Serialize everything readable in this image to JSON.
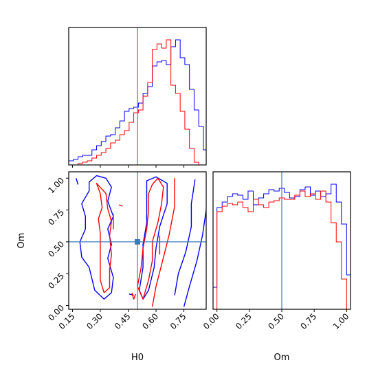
{
  "chart_data": {
    "type": "corner",
    "parameters": [
      "H0",
      "Om"
    ],
    "truth": {
      "H0": 0.5,
      "Om": 0.5,
      "color": "#3a7bbf"
    },
    "series_colors": {
      "blue": "#0000ff",
      "red": "#ff0000"
    },
    "panels": {
      "hist_H0": {
        "xlim": [
          0.13,
          0.87
        ],
        "x_ticks": [
          0.15,
          0.3,
          0.45,
          0.6,
          0.75
        ],
        "bin_edges": [
          0.13,
          0.155,
          0.18,
          0.205,
          0.23,
          0.255,
          0.28,
          0.305,
          0.33,
          0.355,
          0.38,
          0.405,
          0.43,
          0.455,
          0.48,
          0.505,
          0.53,
          0.555,
          0.58,
          0.605,
          0.63,
          0.655,
          0.68,
          0.705,
          0.73,
          0.755,
          0.78,
          0.805,
          0.83,
          0.855,
          0.87
        ],
        "blue": [
          0.03,
          0.04,
          0.06,
          0.07,
          0.07,
          0.11,
          0.14,
          0.17,
          0.21,
          0.22,
          0.27,
          0.32,
          0.39,
          0.41,
          0.42,
          0.45,
          0.52,
          0.57,
          0.72,
          0.75,
          0.76,
          0.73,
          0.86,
          0.91,
          0.78,
          0.73,
          0.55,
          0.4,
          0.28,
          0.11
        ],
        "red": [
          0.0,
          0.0,
          0.01,
          0.02,
          0.03,
          0.05,
          0.07,
          0.09,
          0.12,
          0.16,
          0.18,
          0.22,
          0.25,
          0.31,
          0.38,
          0.4,
          0.5,
          0.6,
          0.84,
          0.88,
          0.85,
          0.91,
          0.58,
          0.52,
          0.39,
          0.26,
          0.12,
          0.02,
          0.0,
          0.0
        ]
      },
      "hist_Om": {
        "xlim": [
          -0.03,
          1.03
        ],
        "x_ticks": [
          0.0,
          0.25,
          0.5,
          0.75,
          1.0
        ],
        "bin_edges": [
          -0.03,
          0.0,
          0.04,
          0.08,
          0.12,
          0.16,
          0.2,
          0.24,
          0.28,
          0.32,
          0.36,
          0.4,
          0.44,
          0.48,
          0.52,
          0.56,
          0.6,
          0.64,
          0.68,
          0.72,
          0.76,
          0.8,
          0.84,
          0.88,
          0.92,
          0.96,
          1.0,
          1.03
        ],
        "blue": [
          0.16,
          0.74,
          0.78,
          0.82,
          0.84,
          0.83,
          0.8,
          0.86,
          0.76,
          0.81,
          0.84,
          0.87,
          0.86,
          0.88,
          0.85,
          0.81,
          0.82,
          0.87,
          0.89,
          0.83,
          0.86,
          0.82,
          0.84,
          0.91,
          0.78,
          0.62,
          0.25
        ],
        "red": [
          0.0,
          0.71,
          0.75,
          0.77,
          0.76,
          0.78,
          0.74,
          0.71,
          0.8,
          0.76,
          0.74,
          0.78,
          0.79,
          0.81,
          0.8,
          0.8,
          0.83,
          0.86,
          0.82,
          0.84,
          0.8,
          0.86,
          0.78,
          0.63,
          0.49,
          0.22,
          0.0
        ]
      },
      "contour_Om_vs_H0": {
        "xlabel": "H0",
        "ylabel": "Om",
        "xlim": [
          0.13,
          0.87
        ],
        "ylim": [
          -0.03,
          1.05
        ],
        "x_ticks": [
          0.15,
          0.3,
          0.45,
          0.6,
          0.75
        ],
        "y_ticks": [
          0.0,
          0.25,
          0.5,
          0.75,
          1.0
        ],
        "blue_contours": [
          [
            [
              0.24,
              0.97
            ],
            [
              0.28,
              1.02
            ],
            [
              0.33,
              1.0
            ],
            [
              0.36,
              0.93
            ],
            [
              0.34,
              0.82
            ],
            [
              0.37,
              0.7
            ],
            [
              0.34,
              0.6
            ],
            [
              0.36,
              0.48
            ],
            [
              0.34,
              0.37
            ],
            [
              0.37,
              0.22
            ],
            [
              0.36,
              0.1
            ],
            [
              0.32,
              0.05
            ],
            [
              0.27,
              0.12
            ],
            [
              0.24,
              0.3
            ],
            [
              0.2,
              0.38
            ],
            [
              0.19,
              0.5
            ],
            [
              0.22,
              0.6
            ],
            [
              0.22,
              0.7
            ],
            [
              0.2,
              0.8
            ],
            [
              0.24,
              0.9
            ]
          ],
          [
            [
              0.17,
              1.0
            ],
            [
              0.18,
              0.95
            ]
          ],
          [
            [
              0.55,
              0.98
            ],
            [
              0.6,
              1.01
            ],
            [
              0.66,
              0.96
            ],
            [
              0.66,
              0.8
            ],
            [
              0.62,
              0.62
            ],
            [
              0.6,
              0.45
            ],
            [
              0.59,
              0.3
            ],
            [
              0.56,
              0.12
            ],
            [
              0.53,
              0.05
            ],
            [
              0.51,
              0.12
            ],
            [
              0.53,
              0.3
            ],
            [
              0.53,
              0.48
            ],
            [
              0.55,
              0.65
            ],
            [
              0.55,
              0.85
            ]
          ],
          [
            [
              0.7,
              0.08
            ],
            [
              0.72,
              0.25
            ],
            [
              0.76,
              0.42
            ],
            [
              0.79,
              0.62
            ],
            [
              0.79,
              0.8
            ],
            [
              0.81,
              0.99
            ]
          ],
          [
            [
              0.75,
              -0.01
            ],
            [
              0.78,
              0.15
            ],
            [
              0.82,
              0.35
            ],
            [
              0.85,
              0.55
            ],
            [
              0.87,
              0.75
            ]
          ],
          [
            [
              0.455,
              0.09
            ],
            [
              0.48,
              0.08
            ]
          ]
        ],
        "red_contours": [
          [
            [
              0.28,
              0.96
            ],
            [
              0.3,
              0.88
            ],
            [
              0.31,
              0.77
            ],
            [
              0.29,
              0.68
            ],
            [
              0.3,
              0.57
            ],
            [
              0.3,
              0.45
            ],
            [
              0.3,
              0.32
            ],
            [
              0.3,
              0.2
            ],
            [
              0.32,
              0.1
            ],
            [
              0.35,
              0.14
            ],
            [
              0.35,
              0.28
            ],
            [
              0.36,
              0.4
            ],
            [
              0.35,
              0.55
            ],
            [
              0.36,
              0.66
            ],
            [
              0.34,
              0.76
            ],
            [
              0.33,
              0.88
            ]
          ],
          [
            [
              0.37,
              0.6
            ],
            [
              0.37,
              0.72
            ]
          ],
          [
            [
              0.4,
              0.79
            ],
            [
              0.42,
              0.78
            ]
          ],
          [
            [
              0.58,
              0.95
            ],
            [
              0.61,
              1.0
            ],
            [
              0.64,
              0.93
            ],
            [
              0.63,
              0.8
            ],
            [
              0.61,
              0.65
            ],
            [
              0.58,
              0.5
            ],
            [
              0.58,
              0.35
            ],
            [
              0.56,
              0.2
            ],
            [
              0.53,
              0.05
            ],
            [
              0.5,
              0.15
            ],
            [
              0.52,
              0.3
            ],
            [
              0.53,
              0.45
            ],
            [
              0.55,
              0.6
            ],
            [
              0.56,
              0.75
            ],
            [
              0.56,
              0.88
            ]
          ],
          [
            [
              0.47,
              0.1
            ],
            [
              0.48,
              0.05
            ],
            [
              0.49,
              0.09
            ]
          ],
          [
            [
              0.58,
              -0.01
            ],
            [
              0.6,
              0.15
            ],
            [
              0.63,
              0.32
            ],
            [
              0.67,
              0.55
            ],
            [
              0.7,
              0.78
            ],
            [
              0.7,
              1.0
            ]
          ],
          [
            [
              0.62,
              0.4
            ],
            [
              0.62,
              0.55
            ]
          ]
        ]
      }
    },
    "xlabel_Om": "Om"
  }
}
